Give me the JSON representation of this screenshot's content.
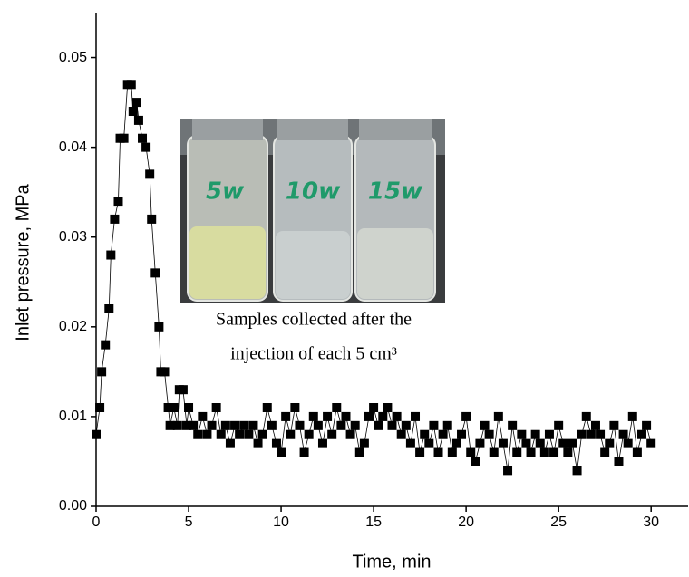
{
  "chart_data": {
    "type": "line",
    "x_label": "Time, min",
    "y_label": "Inlet pressure, MPa",
    "annotation": [
      "Samples collected after the",
      "injection of each 5 cm³"
    ],
    "inset_labels": [
      "5w",
      "10w",
      "15w"
    ],
    "color": "#000000",
    "x": [
      0,
      0.2,
      0.3,
      0.5,
      0.7,
      0.8,
      1.0,
      1.2,
      1.3,
      1.5,
      1.7,
      1.9,
      2.0,
      2.2,
      2.3,
      2.5,
      2.7,
      2.9,
      3.0,
      3.2,
      3.4,
      3.5,
      3.7,
      3.9,
      4.0,
      4.2,
      4.4,
      4.5,
      4.7,
      4.9,
      5.0,
      5.25,
      5.5,
      5.75,
      6.0,
      6.25,
      6.5,
      6.75,
      7.0,
      7.25,
      7.5,
      7.75,
      8.0,
      8.25,
      8.5,
      8.75,
      9.0,
      9.25,
      9.5,
      9.75,
      10.0,
      10.25,
      10.5,
      10.75,
      11.0,
      11.25,
      11.5,
      11.75,
      12.0,
      12.25,
      12.5,
      12.75,
      13.0,
      13.25,
      13.5,
      13.75,
      14.0,
      14.25,
      14.5,
      14.75,
      15.0,
      15.25,
      15.5,
      15.75,
      16.0,
      16.25,
      16.5,
      16.75,
      17.0,
      17.25,
      17.5,
      17.75,
      18.0,
      18.25,
      18.5,
      18.75,
      19.0,
      19.25,
      19.5,
      19.75,
      20.0,
      20.25,
      20.5,
      20.75,
      21.0,
      21.25,
      21.5,
      21.75,
      22.0,
      22.25,
      22.5,
      22.75,
      23.0,
      23.25,
      23.5,
      23.75,
      24.0,
      24.25,
      24.5,
      24.75,
      25.0,
      25.25,
      25.5,
      25.75,
      26.0,
      26.25,
      26.5,
      26.75,
      27.0,
      27.25,
      27.5,
      27.75,
      28.0,
      28.25,
      28.5,
      28.75,
      29.0,
      29.25,
      29.5,
      29.75,
      30.0
    ],
    "values": [
      0.008,
      0.011,
      0.015,
      0.018,
      0.022,
      0.028,
      0.032,
      0.034,
      0.041,
      0.041,
      0.047,
      0.047,
      0.044,
      0.045,
      0.043,
      0.041,
      0.04,
      0.037,
      0.032,
      0.026,
      0.02,
      0.015,
      0.015,
      0.011,
      0.009,
      0.011,
      0.009,
      0.013,
      0.013,
      0.009,
      0.011,
      0.009,
      0.008,
      0.01,
      0.008,
      0.009,
      0.011,
      0.008,
      0.009,
      0.007,
      0.009,
      0.008,
      0.009,
      0.008,
      0.009,
      0.007,
      0.008,
      0.011,
      0.009,
      0.007,
      0.006,
      0.01,
      0.008,
      0.011,
      0.009,
      0.006,
      0.008,
      0.01,
      0.009,
      0.007,
      0.01,
      0.008,
      0.011,
      0.009,
      0.01,
      0.008,
      0.009,
      0.006,
      0.007,
      0.01,
      0.011,
      0.009,
      0.01,
      0.011,
      0.009,
      0.01,
      0.008,
      0.009,
      0.007,
      0.01,
      0.006,
      0.008,
      0.007,
      0.009,
      0.006,
      0.008,
      0.009,
      0.006,
      0.007,
      0.008,
      0.01,
      0.006,
      0.005,
      0.007,
      0.009,
      0.008,
      0.006,
      0.01,
      0.007,
      0.004,
      0.009,
      0.006,
      0.008,
      0.007,
      0.006,
      0.008,
      0.007,
      0.006,
      0.008,
      0.006,
      0.009,
      0.007,
      0.006,
      0.007,
      0.004,
      0.008,
      0.01,
      0.008,
      0.009,
      0.008,
      0.006,
      0.007,
      0.009,
      0.005,
      0.008,
      0.007,
      0.01,
      0.006,
      0.008,
      0.009,
      0.007
    ],
    "xlim": [
      0,
      32
    ],
    "xticks": [
      0,
      5,
      10,
      15,
      20,
      25,
      30
    ],
    "ylim": [
      0,
      0.055
    ],
    "yticks": [
      {
        "value": 0,
        "label": "0.00"
      },
      0.01,
      0.02,
      0.03,
      0.04,
      0.05
    ]
  }
}
